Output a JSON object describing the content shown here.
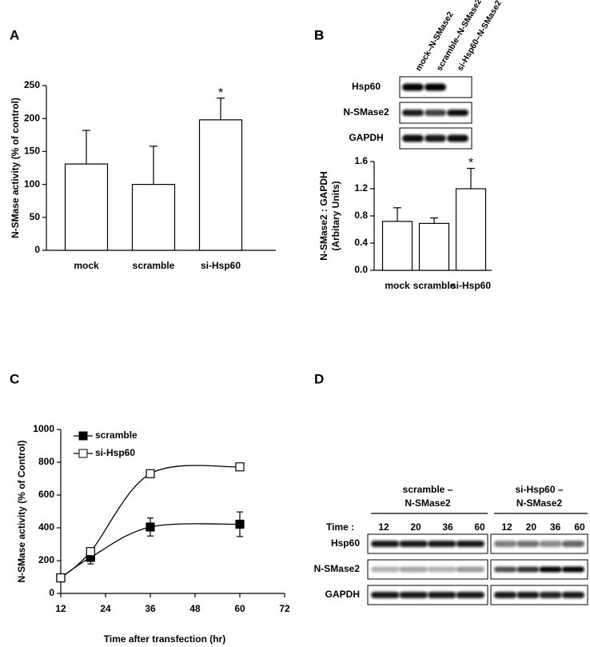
{
  "chart_data": [
    {
      "type": "bar",
      "panel": "A",
      "ylabel": "N-SMase activity  (% of control)",
      "categories": [
        "mock",
        "scramble",
        "si-Hsp60"
      ],
      "values": [
        131,
        100,
        198
      ],
      "errors": [
        51,
        58,
        33
      ],
      "color": "#ffffff",
      "annotation": {
        "text": "*",
        "category": "si-Hsp60"
      },
      "ylim": [
        0,
        250
      ],
      "yticks": [
        0,
        50,
        100,
        150,
        200,
        250
      ],
      "grid": false
    },
    {
      "type": "bar",
      "panel": "B",
      "ylabel": [
        "N-SMase2 : GAPDH",
        "(Arbitary Units)"
      ],
      "categories": [
        "mock",
        "scramble",
        "si-Hsp60"
      ],
      "values": [
        0.72,
        0.69,
        1.2
      ],
      "errors": [
        0.2,
        0.08,
        0.3
      ],
      "color": "#ffffff",
      "annotation": {
        "text": "*",
        "category": "si-Hsp60"
      },
      "ylim": [
        0,
        1.6
      ],
      "yticks": [
        {
          "value": 0,
          "label": "0.0"
        },
        0.4,
        0.8,
        1.2,
        1.6
      ],
      "grid": false
    },
    {
      "type": "line",
      "panel": "C",
      "xlabel": "Time after transfection  (hr)",
      "ylabel": "N-SMase activity  (% of Control)",
      "x": [
        12,
        20,
        36,
        60
      ],
      "series": [
        {
          "name": "scramble",
          "color": "#000000",
          "marker": "filled",
          "values": [
            95,
            220,
            405,
            422
          ],
          "errors": [
            null,
            40,
            55,
            75
          ]
        },
        {
          "name": "si-Hsp60",
          "color": "#000000",
          "marker": "open",
          "values": [
            95,
            255,
            730,
            772
          ],
          "errors": [
            null,
            null,
            null,
            20
          ]
        }
      ],
      "xlim": [
        12,
        72
      ],
      "xticks": [
        12,
        24,
        36,
        48,
        60,
        72
      ],
      "ylim": [
        0,
        1000
      ],
      "yticks": [
        0,
        200,
        400,
        600,
        800,
        1000
      ],
      "legend": "upper left",
      "grid": false
    }
  ],
  "blots": {
    "B": {
      "columns": [
        "mock–N-SMase2",
        "scramble–N-SMase2",
        "si-Hsp60–N-SMase2"
      ],
      "rows": [
        "Hsp60",
        "N-SMase2",
        "GAPDH"
      ]
    },
    "D": {
      "panel": "D",
      "time_label": "Time :",
      "groups": [
        {
          "title": [
            "scramble –",
            "N-SMase2"
          ],
          "times": [
            12,
            20,
            36,
            60
          ]
        },
        {
          "title": [
            "si-Hsp60 –",
            "N-SMase2"
          ],
          "times": [
            12,
            20,
            36,
            60
          ]
        }
      ],
      "rows": [
        "Hsp60",
        "N-SMase2",
        "GAPDH"
      ]
    }
  }
}
